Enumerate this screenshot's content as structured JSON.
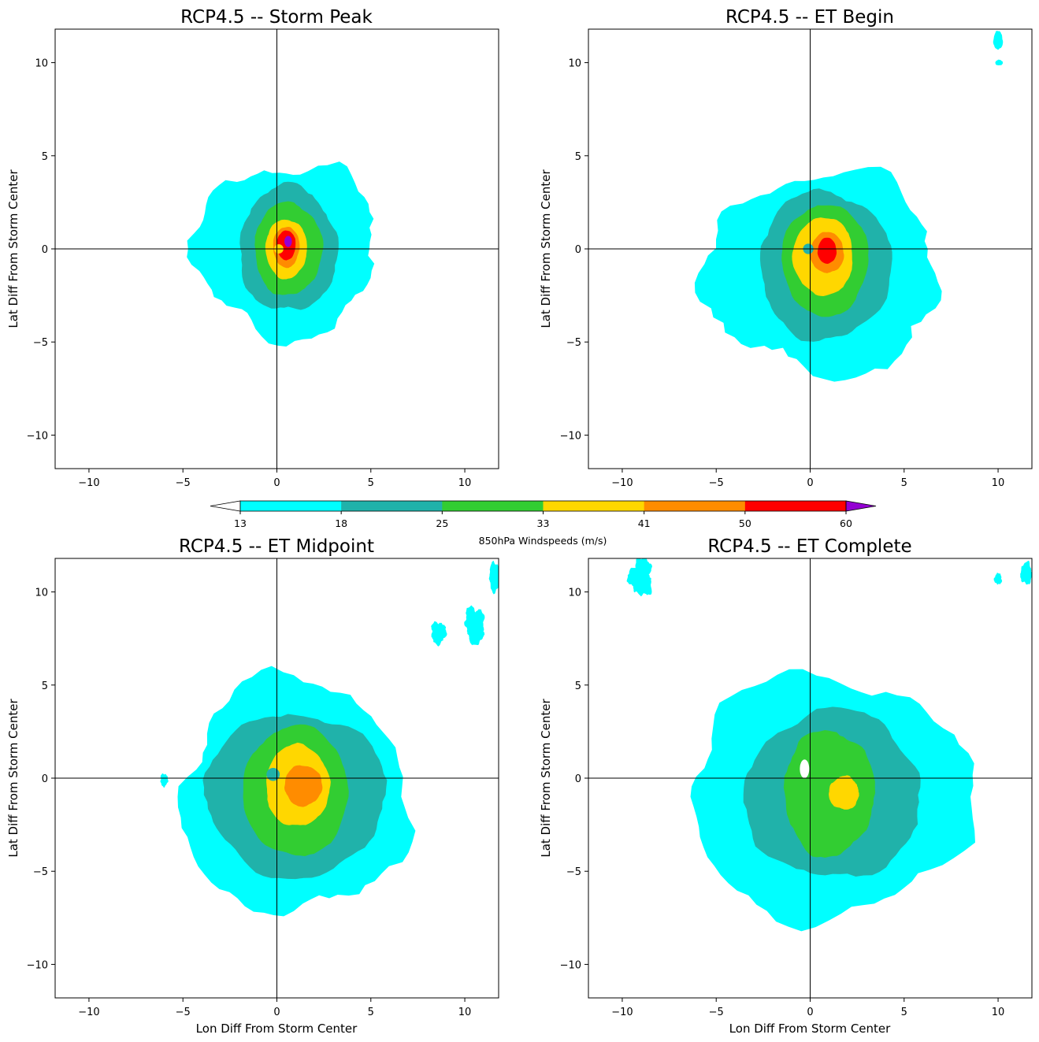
{
  "figure": {
    "colorbar": {
      "label": "850hPa Windspeeds (m/s)",
      "levels": [
        13,
        18,
        25,
        33,
        41,
        50,
        60
      ],
      "colors": [
        "#00ffff",
        "#20b2aa",
        "#32cd32",
        "#ffd700",
        "#ff8c00",
        "#ff0000"
      ],
      "over_color": "#9400d3",
      "under_color": "#ffffff",
      "extend": "both"
    }
  },
  "chart_data": [
    {
      "type": "contourf",
      "title": "RCP4.5 -- Storm Peak",
      "xlabel": "",
      "ylabel": "Lat Diff From Storm Center",
      "xlim": [
        -11.8,
        11.8
      ],
      "ylim": [
        -11.8,
        11.8
      ],
      "xticks": [
        -10,
        -5,
        0,
        5,
        10
      ],
      "yticks": [
        -10,
        -5,
        0,
        5,
        10
      ],
      "crosshair": [
        0,
        0
      ],
      "regions": [
        {
          "level": 13,
          "color": "#00ffff",
          "center": [
            0.5,
            0.0
          ],
          "radii": [
            4.8,
            4.6
          ],
          "rough": 0.18
        },
        {
          "level": 18,
          "color": "#20b2aa",
          "center": [
            0.6,
            0.0
          ],
          "radii": [
            2.6,
            3.4
          ],
          "rough": 0.08
        },
        {
          "level": 25,
          "color": "#32cd32",
          "center": [
            0.6,
            0.0
          ],
          "radii": [
            1.8,
            2.5
          ],
          "rough": 0.06
        },
        {
          "level": 33,
          "color": "#ffd700",
          "center": [
            0.5,
            0.0
          ],
          "radii": [
            1.1,
            1.6
          ],
          "rough": 0.05
        },
        {
          "level": 41,
          "color": "#ff8c00",
          "center": [
            0.5,
            0.1
          ],
          "radii": [
            0.7,
            1.1
          ],
          "rough": 0.05
        },
        {
          "level": 50,
          "color": "#ff0000",
          "center": [
            0.5,
            0.2
          ],
          "radii": [
            0.5,
            0.8
          ],
          "rough": 0.04
        },
        {
          "level": 60,
          "color": "#9400d3",
          "center": [
            0.6,
            0.4
          ],
          "radii": [
            0.2,
            0.3
          ],
          "rough": 0.02
        },
        {
          "level": 33,
          "color": "#ffd700",
          "center": [
            0.1,
            0.0
          ],
          "radii": [
            0.25,
            0.25
          ],
          "rough": 0.0
        }
      ]
    },
    {
      "type": "contourf",
      "title": "RCP4.5 -- ET Begin",
      "xlabel": "",
      "ylabel": "Lat Diff From Storm Center",
      "xlim": [
        -11.8,
        11.8
      ],
      "ylim": [
        -11.8,
        11.8
      ],
      "xticks": [
        -10,
        -5,
        0,
        5,
        10
      ],
      "yticks": [
        -10,
        -5,
        0,
        5,
        10
      ],
      "crosshair": [
        0,
        0
      ],
      "regions": [
        {
          "level": 13,
          "color": "#00ffff",
          "center": [
            0.7,
            -1.3
          ],
          "radii": [
            6.2,
            5.4
          ],
          "rough": 0.16
        },
        {
          "level": 18,
          "color": "#20b2aa",
          "center": [
            0.8,
            -0.9
          ],
          "radii": [
            3.5,
            4.0
          ],
          "rough": 0.07
        },
        {
          "level": 25,
          "color": "#32cd32",
          "center": [
            0.8,
            -0.6
          ],
          "radii": [
            2.3,
            3.0
          ],
          "rough": 0.05
        },
        {
          "level": 33,
          "color": "#ffd700",
          "center": [
            0.7,
            -0.4
          ],
          "radii": [
            1.6,
            2.1
          ],
          "rough": 0.05
        },
        {
          "level": 41,
          "color": "#ff8c00",
          "center": [
            0.9,
            -0.2
          ],
          "radii": [
            0.9,
            1.1
          ],
          "rough": 0.05
        },
        {
          "level": 50,
          "color": "#ff0000",
          "center": [
            0.9,
            -0.1
          ],
          "radii": [
            0.5,
            0.7
          ],
          "rough": 0.04
        },
        {
          "level": 18,
          "color": "#20b2aa",
          "center": [
            -0.1,
            0.0
          ],
          "radii": [
            0.28,
            0.28
          ],
          "rough": 0.0
        },
        {
          "level": 13,
          "color": "#00ffff",
          "center": [
            10.0,
            11.2
          ],
          "radii": [
            0.25,
            0.5
          ],
          "rough": 0.1
        },
        {
          "level": 13,
          "color": "#00ffff",
          "center": [
            10.05,
            10.0
          ],
          "radii": [
            0.2,
            0.15
          ],
          "rough": 0.1
        }
      ]
    },
    {
      "type": "contourf",
      "title": "RCP4.5 -- ET Midpoint",
      "xlabel": "Lon Diff From Storm Center",
      "ylabel": "Lat Diff From Storm Center",
      "xlim": [
        -11.8,
        11.8
      ],
      "ylim": [
        -11.8,
        11.8
      ],
      "xticks": [
        -10,
        -5,
        0,
        5,
        10
      ],
      "yticks": [
        -10,
        -5,
        0,
        5,
        10
      ],
      "crosshair": [
        0,
        0
      ],
      "regions": [
        {
          "level": 13,
          "color": "#00ffff",
          "center": [
            0.9,
            -1.0
          ],
          "radii": [
            6.0,
            6.3
          ],
          "rough": 0.14
        },
        {
          "level": 18,
          "color": "#20b2aa",
          "center": [
            1.0,
            -0.9
          ],
          "radii": [
            4.8,
            4.4
          ],
          "rough": 0.07
        },
        {
          "level": 25,
          "color": "#32cd32",
          "center": [
            1.0,
            -0.7
          ],
          "radii": [
            2.8,
            3.5
          ],
          "rough": 0.05
        },
        {
          "level": 33,
          "color": "#ffd700",
          "center": [
            1.1,
            -0.4
          ],
          "radii": [
            1.7,
            2.2
          ],
          "rough": 0.05
        },
        {
          "level": 41,
          "color": "#ff8c00",
          "center": [
            1.4,
            -0.4
          ],
          "radii": [
            1.0,
            1.1
          ],
          "rough": 0.06
        },
        {
          "level": 18,
          "color": "#20b2aa",
          "center": [
            -0.2,
            0.2
          ],
          "radii": [
            0.35,
            0.35
          ],
          "rough": 0.0
        },
        {
          "level": 13,
          "color": "#00ffff",
          "center": [
            10.5,
            8.3
          ],
          "radii": [
            0.5,
            0.9
          ],
          "rough": 0.3
        },
        {
          "level": 13,
          "color": "#00ffff",
          "center": [
            10.6,
            7.7
          ],
          "radii": [
            0.4,
            0.5
          ],
          "rough": 0.25
        },
        {
          "level": 13,
          "color": "#00ffff",
          "center": [
            8.6,
            7.8
          ],
          "radii": [
            0.4,
            0.6
          ],
          "rough": 0.25
        },
        {
          "level": 13,
          "color": "#00ffff",
          "center": [
            11.6,
            10.8
          ],
          "radii": [
            0.3,
            0.8
          ],
          "rough": 0.2
        },
        {
          "level": 13,
          "color": "#00ffff",
          "center": [
            -6.0,
            -0.1
          ],
          "radii": [
            0.2,
            0.35
          ],
          "rough": 0.2
        }
      ]
    },
    {
      "type": "contourf",
      "title": "RCP4.5 -- ET Complete",
      "xlabel": "Lon Diff From Storm Center",
      "ylabel": "Lat Diff From Storm Center",
      "xlim": [
        -11.8,
        11.8
      ],
      "ylim": [
        -11.8,
        11.8
      ],
      "xticks": [
        -10,
        -5,
        0,
        5,
        10
      ],
      "yticks": [
        -10,
        -5,
        0,
        5,
        10
      ],
      "crosshair": [
        0,
        0
      ],
      "regions": [
        {
          "level": 13,
          "color": "#00ffff",
          "center": [
            1.0,
            -1.0
          ],
          "radii": [
            7.5,
            6.5
          ],
          "rough": 0.14
        },
        {
          "level": 18,
          "color": "#20b2aa",
          "center": [
            1.2,
            -0.9
          ],
          "radii": [
            4.7,
            4.5
          ],
          "rough": 0.08
        },
        {
          "level": 25,
          "color": "#32cd32",
          "center": [
            1.0,
            -0.8
          ],
          "radii": [
            2.4,
            3.4
          ],
          "rough": 0.07
        },
        {
          "level": 33,
          "color": "#ffd700",
          "center": [
            1.8,
            -0.8
          ],
          "radii": [
            0.8,
            0.9
          ],
          "rough": 0.08
        },
        {
          "level": 13,
          "color": "#ffffff",
          "center": [
            -0.3,
            0.5
          ],
          "radii": [
            0.25,
            0.5
          ],
          "rough": 0.0
        },
        {
          "level": 13,
          "color": "#00ffff",
          "center": [
            -9.0,
            10.8
          ],
          "radii": [
            0.6,
            1.0
          ],
          "rough": 0.3
        },
        {
          "level": 13,
          "color": "#00ffff",
          "center": [
            11.5,
            11.0
          ],
          "radii": [
            0.3,
            0.6
          ],
          "rough": 0.2
        },
        {
          "level": 13,
          "color": "#00ffff",
          "center": [
            10.0,
            10.7
          ],
          "radii": [
            0.2,
            0.3
          ],
          "rough": 0.2
        }
      ]
    }
  ]
}
